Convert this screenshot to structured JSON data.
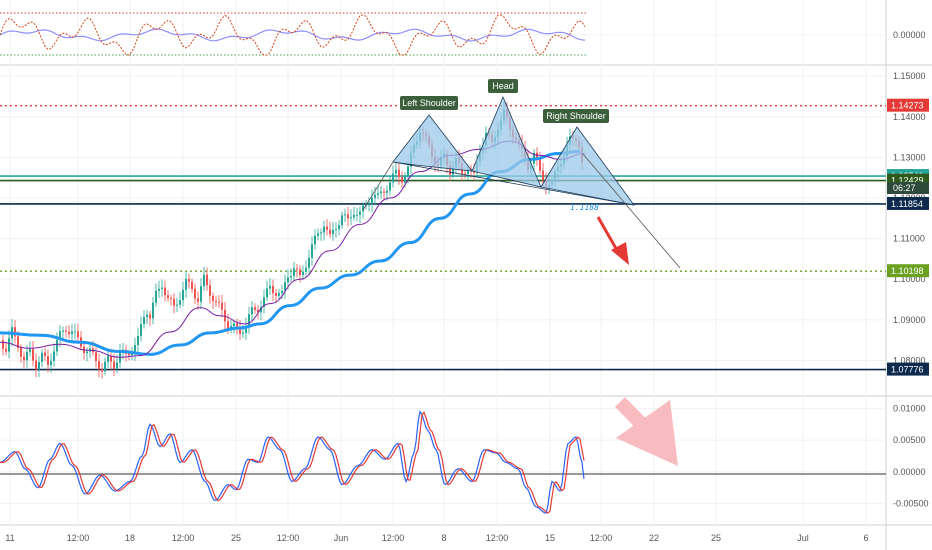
{
  "chart_data": {
    "type": "line",
    "title": "",
    "indicator_top": {
      "ylim": [
        -1,
        1
      ],
      "tick_label": "0.00000"
    },
    "price_axis": {
      "tick_labels": [
        "1.15000",
        "1.14000",
        "1.13000",
        "1.12000",
        "1.11000",
        "1.10000",
        "1.09000",
        "1.08000"
      ],
      "ylim": [
        1.0715,
        1.1525
      ]
    },
    "macd_axis": {
      "tick_labels": [
        "0.01000",
        "0.00500",
        "0.00000",
        "-0.00500"
      ],
      "ylim": [
        -0.0082,
        0.0118
      ]
    },
    "x_tick_labels": [
      "11",
      "12:00",
      "18",
      "12:00",
      "25",
      "12:00",
      "Jun",
      "12:00",
      "8",
      "12:00",
      "15",
      "12:00",
      "22",
      "25",
      "Jul",
      "6"
    ],
    "levels": [
      {
        "price": 1.14273,
        "label": "1.14273",
        "color": "#e53935",
        "style": "dotted"
      },
      {
        "price": 1.12541,
        "label": "1.12541",
        "color": "#26a69a",
        "style": "solid"
      },
      {
        "price": 1.12429,
        "label": "1.12429",
        "color": "#2e5a1c",
        "style": "solid"
      },
      {
        "price": 1.11854,
        "label": "1.11854",
        "color": "#0d2a4d",
        "style": "solid"
      },
      {
        "price": 1.10198,
        "label": "1.10198",
        "color": "#6aa121",
        "style": "dotted"
      },
      {
        "price": 1.07776,
        "label": "1.07776",
        "color": "#0d2a4d",
        "style": "solid"
      }
    ],
    "countdown": "06:27",
    "neckline_value": "1.1188",
    "patterns": [
      "Left Shoulder",
      "Head",
      "Right Shoulder"
    ],
    "price_series": [
      [
        0,
        1.085
      ],
      [
        6,
        1.083
      ],
      [
        12,
        1.087
      ],
      [
        18,
        1.084
      ],
      [
        24,
        1.08
      ],
      [
        30,
        1.082
      ],
      [
        36,
        1.079
      ],
      [
        42,
        1.081
      ],
      [
        48,
        1.079
      ],
      [
        54,
        1.083
      ],
      [
        60,
        1.086
      ],
      [
        66,
        1.088
      ],
      [
        72,
        1.087
      ],
      [
        78,
        1.085
      ],
      [
        84,
        1.083
      ],
      [
        90,
        1.082
      ],
      [
        96,
        1.08
      ],
      [
        102,
        1.078
      ],
      [
        108,
        1.08
      ],
      [
        114,
        1.079
      ],
      [
        120,
        1.082
      ],
      [
        126,
        1.081
      ],
      [
        132,
        1.083
      ],
      [
        138,
        1.085
      ],
      [
        142,
        1.089
      ],
      [
        146,
        1.093
      ],
      [
        150,
        1.091
      ],
      [
        156,
        1.096
      ],
      [
        162,
        1.099
      ],
      [
        168,
        1.095
      ],
      [
        174,
        1.093
      ],
      [
        180,
        1.096
      ],
      [
        186,
        1.099
      ],
      [
        192,
        1.098
      ],
      [
        198,
        1.095
      ],
      [
        204,
        1.1
      ],
      [
        210,
        1.097
      ],
      [
        216,
        1.094
      ],
      [
        222,
        1.092
      ],
      [
        228,
        1.089
      ],
      [
        234,
        1.088
      ],
      [
        240,
        1.087
      ],
      [
        246,
        1.089
      ],
      [
        252,
        1.092
      ],
      [
        258,
        1.093
      ],
      [
        264,
        1.095
      ],
      [
        270,
        1.098
      ],
      [
        276,
        1.097
      ],
      [
        282,
        1.096
      ],
      [
        288,
        1.101
      ],
      [
        294,
        1.103
      ],
      [
        300,
        1.1
      ],
      [
        306,
        1.104
      ],
      [
        312,
        1.108
      ],
      [
        318,
        1.111
      ],
      [
        324,
        1.114
      ],
      [
        330,
        1.11
      ],
      [
        336,
        1.113
      ],
      [
        342,
        1.116
      ],
      [
        348,
        1.114
      ],
      [
        354,
        1.117
      ],
      [
        360,
        1.116
      ],
      [
        366,
        1.118
      ],
      [
        372,
        1.121
      ],
      [
        378,
        1.12
      ],
      [
        384,
        1.122
      ],
      [
        390,
        1.124
      ],
      [
        396,
        1.126
      ],
      [
        402,
        1.125
      ],
      [
        408,
        1.127
      ],
      [
        414,
        1.133
      ],
      [
        420,
        1.137
      ],
      [
        426,
        1.134
      ],
      [
        432,
        1.131
      ],
      [
        438,
        1.128
      ],
      [
        444,
        1.13
      ],
      [
        450,
        1.127
      ],
      [
        456,
        1.129
      ],
      [
        462,
        1.126
      ],
      [
        468,
        1.128
      ],
      [
        474,
        1.125
      ],
      [
        480,
        1.132
      ],
      [
        486,
        1.136
      ],
      [
        492,
        1.133
      ],
      [
        498,
        1.138
      ],
      [
        504,
        1.141
      ],
      [
        510,
        1.137
      ],
      [
        516,
        1.135
      ],
      [
        522,
        1.131
      ],
      [
        528,
        1.128
      ],
      [
        534,
        1.131
      ],
      [
        540,
        1.126
      ],
      [
        546,
        1.124
      ],
      [
        552,
        1.123
      ],
      [
        558,
        1.128
      ],
      [
        564,
        1.131
      ],
      [
        570,
        1.134
      ],
      [
        576,
        1.135
      ],
      [
        580,
        1.133
      ],
      [
        584,
        1.124
      ]
    ],
    "ema_series": [
      [
        0,
        1.0868
      ],
      [
        40,
        1.0862
      ],
      [
        80,
        1.0845
      ],
      [
        120,
        1.0822
      ],
      [
        150,
        1.0815
      ],
      [
        180,
        1.0838
      ],
      [
        210,
        1.0868
      ],
      [
        240,
        1.088
      ],
      [
        260,
        1.089
      ],
      [
        290,
        1.0935
      ],
      [
        320,
        1.0978
      ],
      [
        350,
        1.101
      ],
      [
        380,
        1.1045
      ],
      [
        410,
        1.109
      ],
      [
        440,
        1.115
      ],
      [
        470,
        1.121
      ],
      [
        500,
        1.1265
      ],
      [
        530,
        1.1295
      ],
      [
        560,
        1.131
      ],
      [
        580,
        1.1315
      ]
    ],
    "sma_series": [
      [
        0,
        1.0845
      ],
      [
        30,
        1.083
      ],
      [
        60,
        1.084
      ],
      [
        90,
        1.0825
      ],
      [
        120,
        1.0808
      ],
      [
        140,
        1.0812
      ],
      [
        170,
        1.087
      ],
      [
        200,
        1.093
      ],
      [
        220,
        1.091
      ],
      [
        245,
        1.089
      ],
      [
        270,
        1.094
      ],
      [
        300,
        1.1
      ],
      [
        330,
        1.107
      ],
      [
        360,
        1.1135
      ],
      [
        390,
        1.12
      ],
      [
        420,
        1.1265
      ],
      [
        450,
        1.1305
      ],
      [
        480,
        1.132
      ],
      [
        510,
        1.134
      ],
      [
        540,
        1.1305
      ],
      [
        560,
        1.1295
      ],
      [
        585,
        1.131
      ]
    ],
    "projection_line": [
      [
        586,
        1.127
      ],
      [
        678,
        1.1025
      ]
    ]
  }
}
